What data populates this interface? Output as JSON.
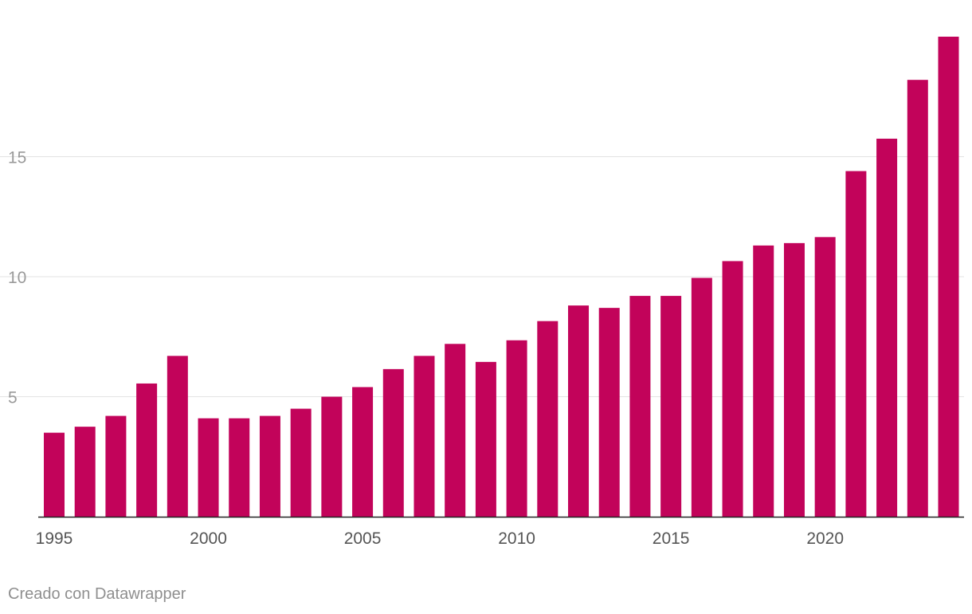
{
  "chart_data": {
    "type": "bar",
    "title": "",
    "xlabel": "",
    "ylabel": "",
    "categories": [
      "1995",
      "1996",
      "1997",
      "1998",
      "1999",
      "2000",
      "2001",
      "2002",
      "2003",
      "2004",
      "2005",
      "2006",
      "2007",
      "2008",
      "2009",
      "2010",
      "2011",
      "2012",
      "2013",
      "2014",
      "2015",
      "2016",
      "2017",
      "2018",
      "2019",
      "2020",
      "2021",
      "2022",
      "2023",
      "2024"
    ],
    "values": [
      3.5,
      3.75,
      4.2,
      5.55,
      6.7,
      4.1,
      4.1,
      4.2,
      4.5,
      5.0,
      5.4,
      6.15,
      6.7,
      7.2,
      6.45,
      7.35,
      8.15,
      8.8,
      8.7,
      9.2,
      9.2,
      9.95,
      10.65,
      11.3,
      11.4,
      11.65,
      14.4,
      15.75,
      18.2,
      20.0
    ],
    "x_tick_labels": [
      "1995",
      "2000",
      "2005",
      "2010",
      "2015",
      "2020"
    ],
    "y_ticks": [
      5,
      10,
      15
    ],
    "ylim": [
      0,
      20.5
    ],
    "grid": true,
    "bar_color": "#c2035a"
  },
  "footer": {
    "credit": "Creado con Datawrapper"
  }
}
